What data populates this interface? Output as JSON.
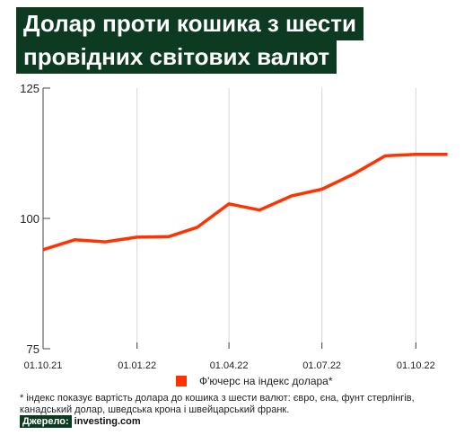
{
  "title": {
    "line1": "Долар проти кошика з шести",
    "line2": "провідних світових валют"
  },
  "chart_data": {
    "type": "line",
    "x_ticks": [
      "01.10.21",
      "01.01.22",
      "01.04.22",
      "01.07.22",
      "01.10.22"
    ],
    "y_ticks": [
      "125",
      "100",
      "75"
    ],
    "ylim": [
      75,
      125
    ],
    "series": [
      {
        "name": "Ф'ючерс на індекс долара*",
        "color": "#ff3300",
        "x": [
          "2021-10-01",
          "2021-11-01",
          "2021-12-01",
          "2022-01-01",
          "2022-02-01",
          "2022-03-01",
          "2022-04-01",
          "2022-05-01",
          "2022-06-01",
          "2022-07-01",
          "2022-08-01",
          "2022-09-01",
          "2022-10-01",
          "2022-11-01"
        ],
        "values": [
          94.0,
          95.9,
          95.5,
          96.4,
          96.5,
          98.3,
          102.8,
          101.6,
          104.3,
          105.6,
          108.5,
          112.0,
          112.3,
          112.3
        ]
      }
    ],
    "grid": "vertical"
  },
  "legend": {
    "label": "Ф'ючерс на індекс долара*"
  },
  "footnote": {
    "line1": "* індекс показує вартість долара до кошика з шести валют: євро, єна, фунт стерлінгів,",
    "line2": "канадський долар, шведська крона і швейцарський франк."
  },
  "source": {
    "label": "Джерело:",
    "name": "investing.com"
  }
}
